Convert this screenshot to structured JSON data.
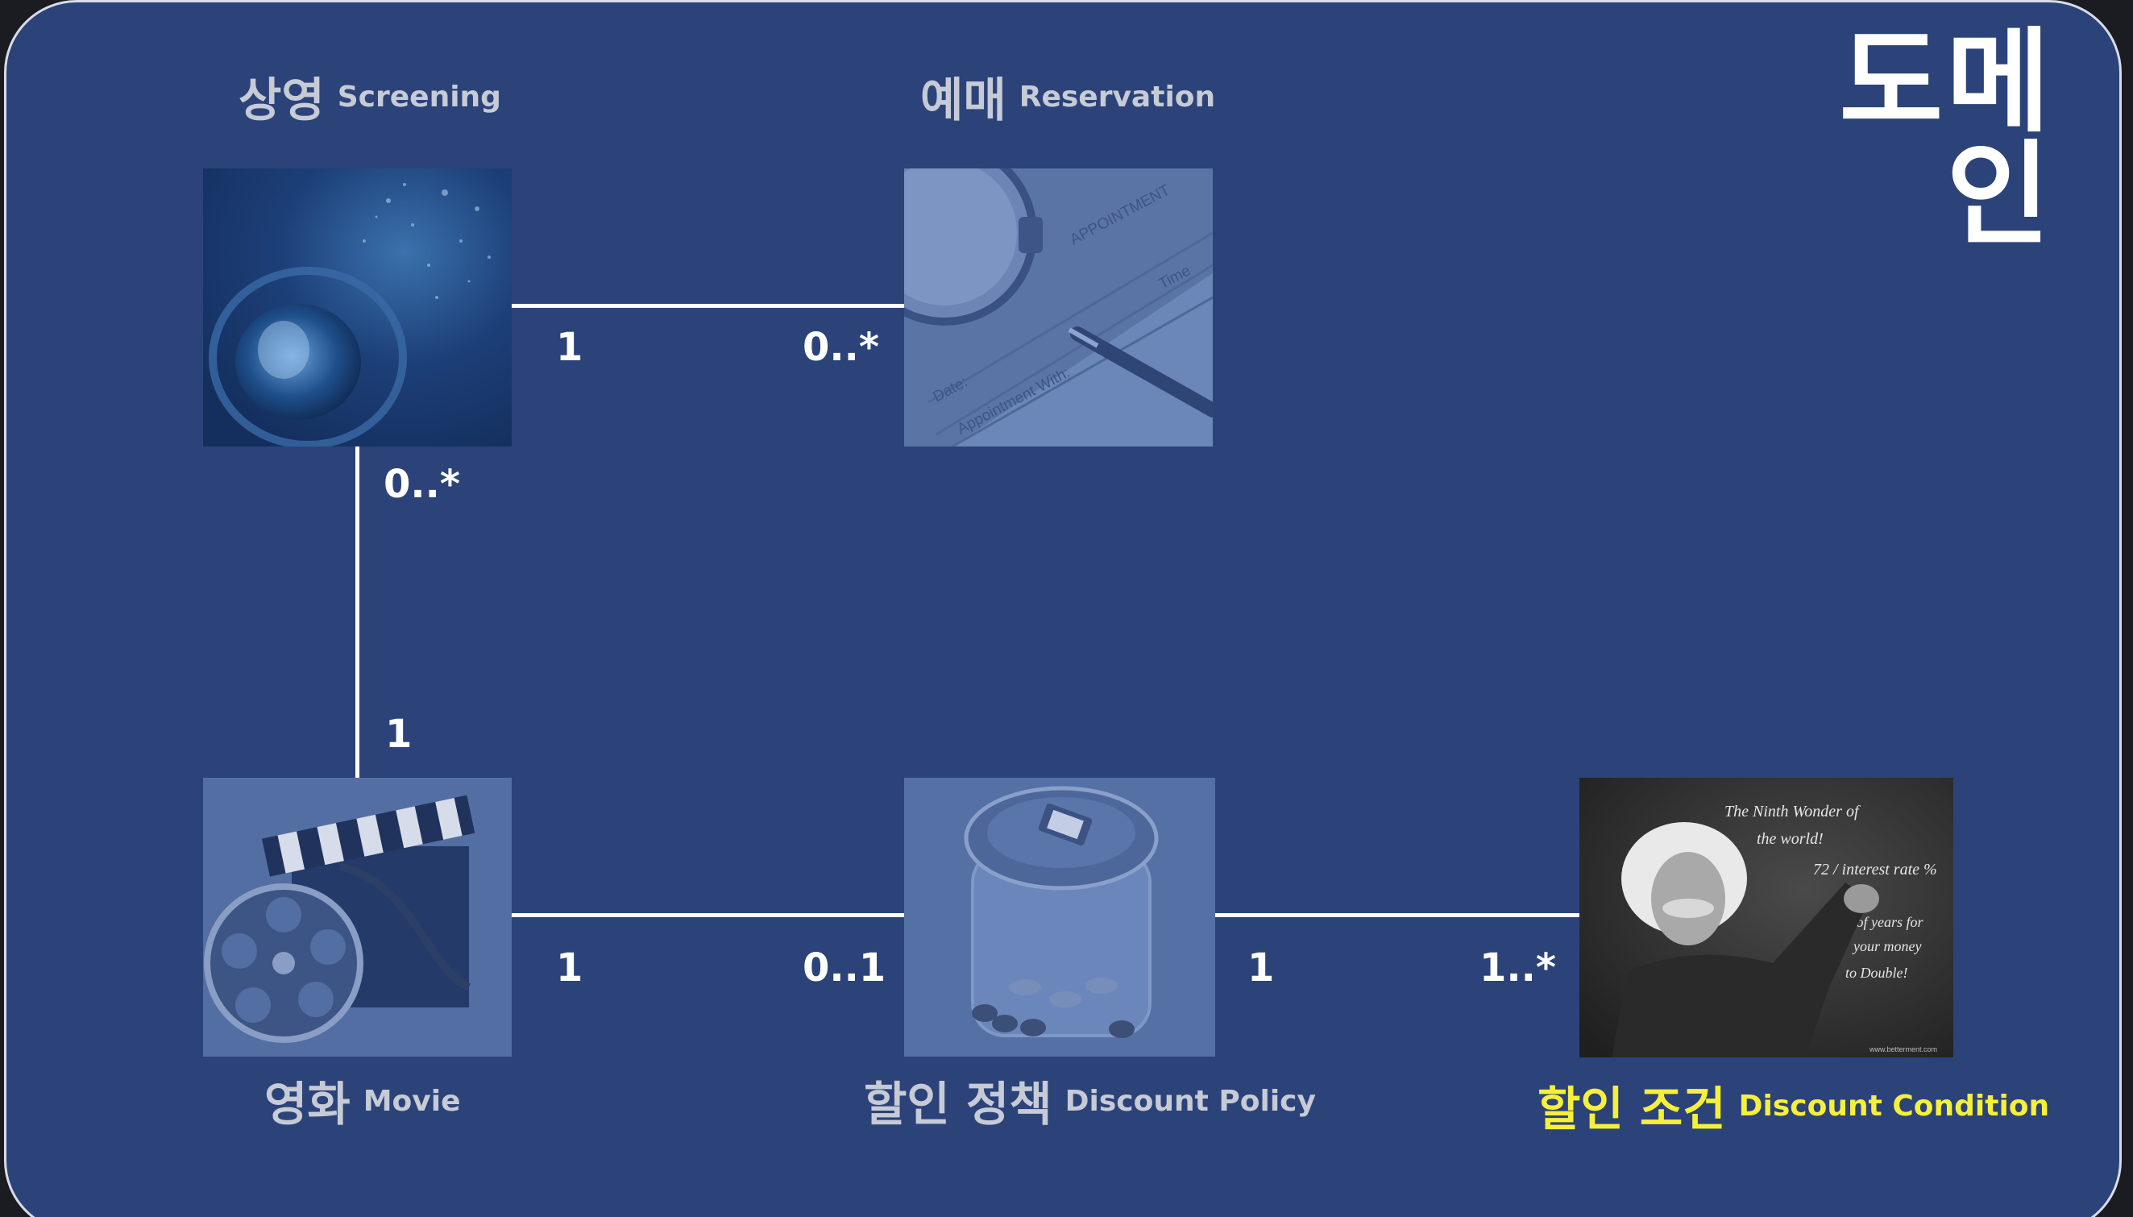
{
  "title": "도메인",
  "entities": {
    "screening": {
      "ko": "상영",
      "en": "Screening",
      "image": "film-lens-icon"
    },
    "reservation": {
      "ko": "예매",
      "en": "Reservation",
      "image": "appointment-watch-pen-icon"
    },
    "movie": {
      "ko": "영화",
      "en": "Movie",
      "image": "film-reel-clapper-icon"
    },
    "discount_policy": {
      "ko": "할인 정책",
      "en": "Discount Policy",
      "image": "coin-jar-icon"
    },
    "discount_condition": {
      "ko": "할인 조건",
      "en": "Discount Condition",
      "image": "einstein-chalkboard-photo",
      "highlight_color": "#f7f03a"
    }
  },
  "appointment_card": {
    "word_top": "APPOINTMENT",
    "word_time": "Time",
    "word_date": "Date:",
    "word_with": "Appointment With:"
  },
  "chalkboard": {
    "lines": [
      "The Ninth Wonder of",
      "the world!",
      "72 / interest rate %",
      "=",
      "# of years for",
      "your money",
      "to Double!"
    ],
    "credit": "www.betterment.com"
  },
  "relations": [
    {
      "from": "screening",
      "to": "reservation",
      "from_mult": "1",
      "to_mult": "0..*"
    },
    {
      "from": "screening",
      "to": "movie",
      "from_mult": "0..*",
      "to_mult": "1"
    },
    {
      "from": "movie",
      "to": "discount_policy",
      "from_mult": "1",
      "to_mult": "0..1"
    },
    {
      "from": "discount_policy",
      "to": "discount_condition",
      "from_mult": "1",
      "to_mult": "1..*"
    }
  ],
  "colors": {
    "background": "#2b4379",
    "line": "#ffffff",
    "label": "#c6cbd6",
    "highlight": "#f7f03a"
  }
}
